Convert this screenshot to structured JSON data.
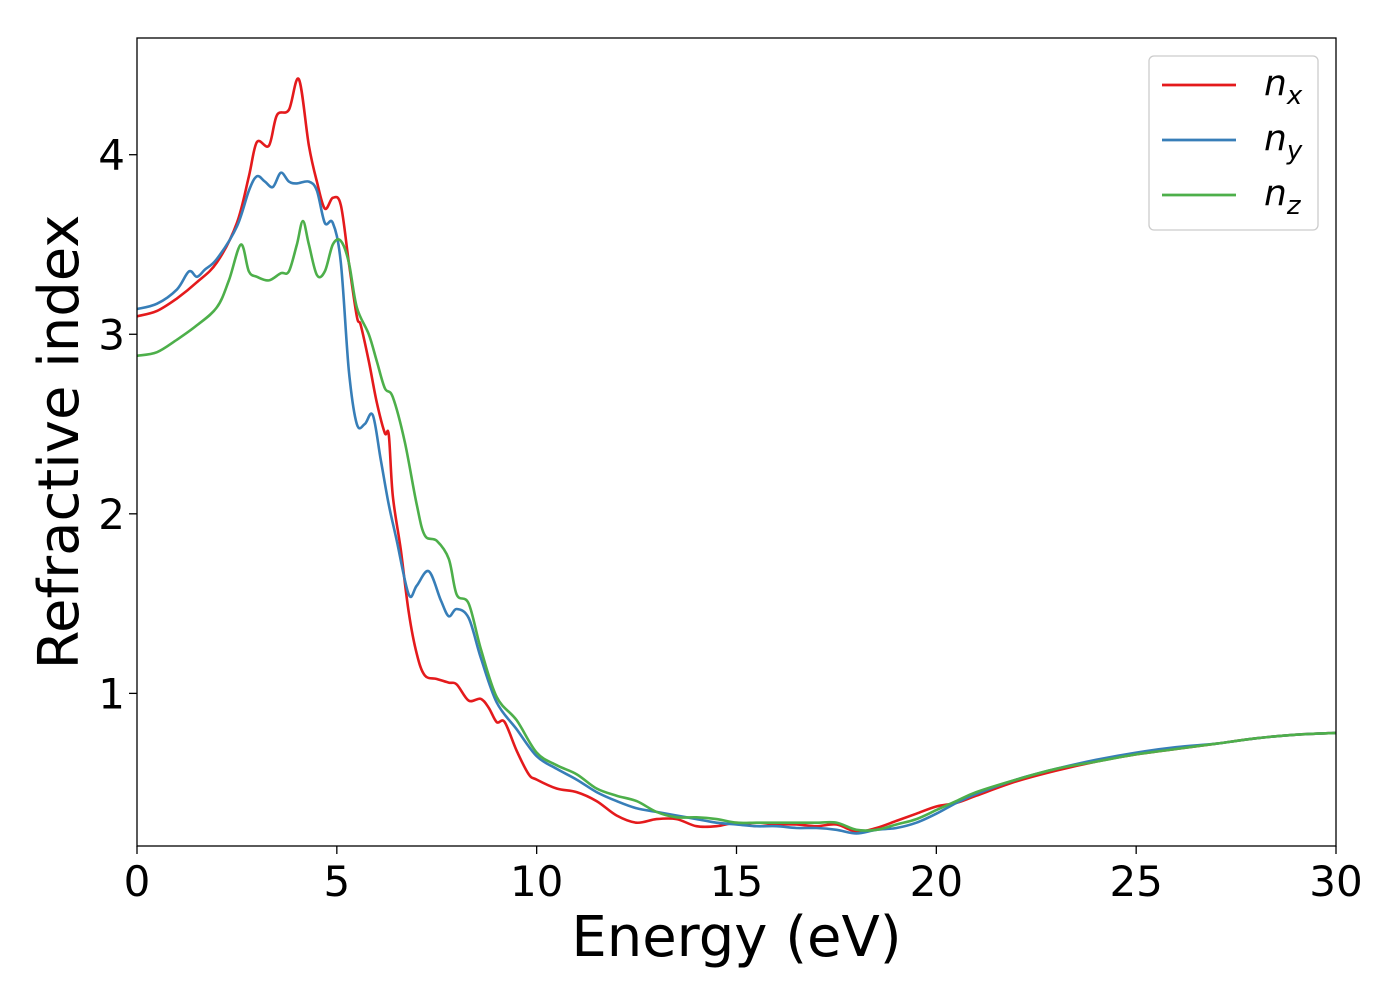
{
  "chart_data": {
    "type": "line",
    "title": "",
    "xlabel": "Energy (eV)",
    "ylabel": "Refractive index",
    "xlim": [
      0,
      30
    ],
    "ylim": [
      0.15,
      4.65
    ],
    "xticks": [
      0,
      5,
      10,
      15,
      20,
      25,
      30
    ],
    "yticks": [
      1,
      2,
      3,
      4
    ],
    "grid": false,
    "legend_position": "top-right",
    "series": [
      {
        "name": "n_x",
        "label_base": "n",
        "label_sub": "x",
        "color": "#e41a1c",
        "x": [
          0,
          0.5,
          1.0,
          1.5,
          2.0,
          2.5,
          2.8,
          3.0,
          3.3,
          3.5,
          3.8,
          4.05,
          4.3,
          4.5,
          4.7,
          4.9,
          5.1,
          5.3,
          5.5,
          5.6,
          5.8,
          6.0,
          6.2,
          6.3,
          6.4,
          6.6,
          6.8,
          7.0,
          7.2,
          7.5,
          7.8,
          8.0,
          8.3,
          8.6,
          8.8,
          9.0,
          9.2,
          9.5,
          9.8,
          10.0,
          10.5,
          11.0,
          11.5,
          12.0,
          12.5,
          13.0,
          13.5,
          14.0,
          14.5,
          15.0,
          15.5,
          16.0,
          16.5,
          17.0,
          17.5,
          18.0,
          18.5,
          19.0,
          19.5,
          20.0,
          20.5,
          21.0,
          22.0,
          23.0,
          24.0,
          25.0,
          26.0,
          27.0,
          28.0,
          29.0,
          30.0
        ],
        "y": [
          3.1,
          3.13,
          3.2,
          3.29,
          3.4,
          3.62,
          3.88,
          4.07,
          4.05,
          4.22,
          4.25,
          4.42,
          4.05,
          3.85,
          3.7,
          3.76,
          3.72,
          3.4,
          3.1,
          3.05,
          2.85,
          2.62,
          2.45,
          2.44,
          2.1,
          1.8,
          1.45,
          1.22,
          1.1,
          1.08,
          1.06,
          1.05,
          0.96,
          0.97,
          0.92,
          0.84,
          0.84,
          0.68,
          0.55,
          0.52,
          0.47,
          0.45,
          0.4,
          0.32,
          0.28,
          0.3,
          0.3,
          0.26,
          0.26,
          0.28,
          0.26,
          0.27,
          0.27,
          0.26,
          0.27,
          0.23,
          0.25,
          0.29,
          0.33,
          0.37,
          0.39,
          0.43,
          0.51,
          0.57,
          0.62,
          0.66,
          0.69,
          0.72,
          0.75,
          0.77,
          0.78
        ]
      },
      {
        "name": "n_y",
        "label_base": "n",
        "label_sub": "y",
        "color": "#377eb8",
        "x": [
          0,
          0.5,
          1.0,
          1.3,
          1.5,
          1.7,
          2.0,
          2.5,
          2.8,
          3.0,
          3.2,
          3.4,
          3.6,
          3.8,
          4.0,
          4.3,
          4.5,
          4.7,
          4.9,
          5.1,
          5.3,
          5.5,
          5.7,
          5.9,
          6.1,
          6.3,
          6.5,
          6.8,
          7.0,
          7.3,
          7.6,
          7.8,
          8.0,
          8.3,
          8.6,
          9.0,
          9.5,
          10.0,
          10.5,
          11.0,
          11.5,
          12.0,
          12.5,
          13.0,
          13.5,
          14.0,
          14.5,
          15.0,
          15.5,
          16.0,
          16.5,
          17.0,
          17.5,
          18.0,
          18.5,
          19.0,
          19.5,
          20.0,
          20.5,
          21.0,
          22.0,
          23.0,
          24.0,
          25.0,
          26.0,
          27.0,
          28.0,
          29.0,
          30.0
        ],
        "y": [
          3.14,
          3.17,
          3.25,
          3.35,
          3.32,
          3.36,
          3.42,
          3.6,
          3.8,
          3.88,
          3.85,
          3.82,
          3.9,
          3.85,
          3.84,
          3.85,
          3.8,
          3.62,
          3.62,
          3.4,
          2.8,
          2.5,
          2.5,
          2.55,
          2.3,
          2.05,
          1.85,
          1.55,
          1.6,
          1.68,
          1.52,
          1.43,
          1.47,
          1.42,
          1.2,
          0.95,
          0.8,
          0.65,
          0.58,
          0.52,
          0.45,
          0.4,
          0.36,
          0.34,
          0.32,
          0.3,
          0.28,
          0.27,
          0.26,
          0.26,
          0.25,
          0.25,
          0.24,
          0.22,
          0.24,
          0.25,
          0.28,
          0.33,
          0.39,
          0.44,
          0.52,
          0.58,
          0.63,
          0.67,
          0.7,
          0.72,
          0.75,
          0.77,
          0.78
        ]
      },
      {
        "name": "n_z",
        "label_base": "n",
        "label_sub": "z",
        "color": "#4daf4a",
        "x": [
          0,
          0.5,
          1.0,
          1.5,
          2.0,
          2.3,
          2.6,
          2.8,
          3.0,
          3.3,
          3.6,
          3.8,
          4.0,
          4.15,
          4.3,
          4.5,
          4.7,
          4.9,
          5.1,
          5.3,
          5.5,
          5.8,
          6.0,
          6.2,
          6.4,
          6.7,
          7.0,
          7.2,
          7.5,
          7.8,
          8.0,
          8.3,
          8.6,
          9.0,
          9.5,
          10.0,
          10.5,
          11.0,
          11.5,
          12.0,
          12.5,
          13.0,
          13.5,
          14.0,
          14.5,
          15.0,
          15.5,
          16.0,
          16.5,
          17.0,
          17.5,
          18.0,
          18.5,
          19.0,
          19.5,
          20.0,
          20.5,
          21.0,
          22.0,
          23.0,
          24.0,
          25.0,
          26.0,
          27.0,
          28.0,
          29.0,
          30.0
        ],
        "y": [
          2.88,
          2.9,
          2.97,
          3.05,
          3.15,
          3.3,
          3.5,
          3.35,
          3.32,
          3.3,
          3.34,
          3.35,
          3.5,
          3.63,
          3.5,
          3.33,
          3.35,
          3.5,
          3.52,
          3.4,
          3.15,
          3.0,
          2.85,
          2.7,
          2.65,
          2.4,
          2.05,
          1.88,
          1.85,
          1.75,
          1.55,
          1.5,
          1.25,
          0.98,
          0.85,
          0.67,
          0.6,
          0.55,
          0.47,
          0.43,
          0.4,
          0.34,
          0.31,
          0.31,
          0.3,
          0.28,
          0.28,
          0.28,
          0.28,
          0.28,
          0.28,
          0.24,
          0.24,
          0.27,
          0.3,
          0.35,
          0.4,
          0.45,
          0.52,
          0.58,
          0.62,
          0.66,
          0.69,
          0.72,
          0.75,
          0.77,
          0.78
        ]
      }
    ]
  }
}
